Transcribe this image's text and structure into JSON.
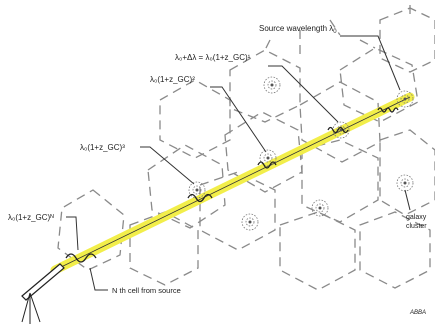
{
  "labels": {
    "source": "Source wavelength  λ",
    "source_sub": "0",
    "z1": "λ₀+Δλ = λ₀(1+z_GC)¹",
    "z2": "λ₀(1+z_GC)²",
    "z3": "λ₀(1+z_GC)³",
    "zN": "λ₀(1+z_GC)ᴺ",
    "nth_cell": "N th cell from source",
    "galaxy": "galaxy",
    "cluster": "cluster",
    "credit": "ABBA"
  },
  "colors": {
    "beam": "#f2ee4a",
    "cell_stroke": "#8a8a8a",
    "ink": "#222222"
  },
  "icons": {
    "observer": "telescope-icon",
    "cluster": "galaxy-cluster-icon"
  }
}
